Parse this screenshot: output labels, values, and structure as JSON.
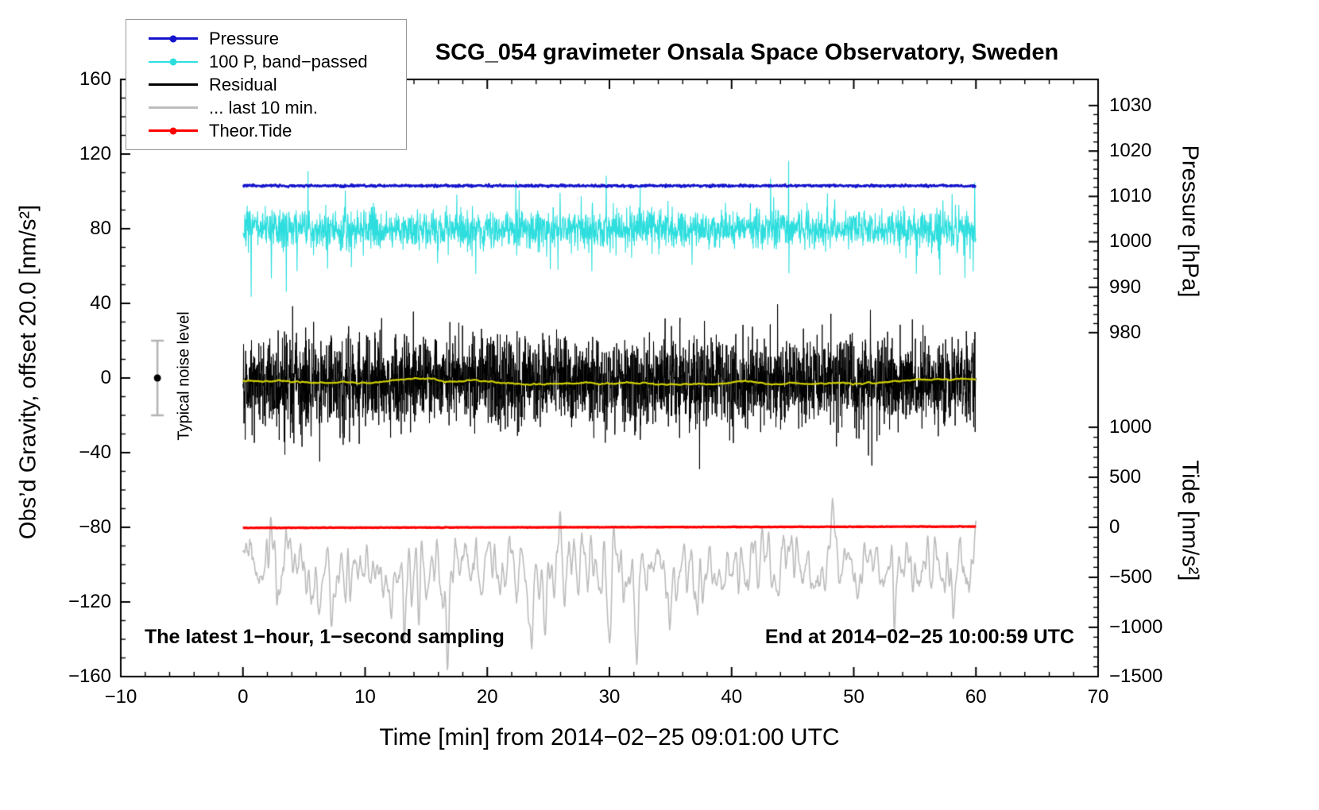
{
  "chart_data": {
    "type": "line",
    "title": "SCG_054 gravimeter Onsala Space Observatory, Sweden",
    "xlabel": "Time [min] from 2014−02−25 09:01:00 UTC",
    "ylabel_left": "Obs’d Gravity, offset 20.0 [nm/s²]",
    "ylabel_right_top": "Pressure [hPa]",
    "ylabel_right_bottom": "Tide [nm/s²]",
    "annotation_left": "The latest 1−hour, 1−second sampling",
    "annotation_right": "End at 2014−02−25 10:00:59 UTC",
    "xlim": [
      -10,
      70
    ],
    "ylim_left": [
      -160,
      160
    ],
    "grid": false,
    "legend_position": "top-left",
    "x_ticks": {
      "values": [
        -10,
        0,
        10,
        20,
        30,
        40,
        50,
        60,
        70
      ],
      "labels": [
        "−10",
        "0",
        "10",
        "20",
        "30",
        "40",
        "50",
        "60",
        "70"
      ],
      "minor_step": 2
    },
    "y_ticks_left": {
      "values": [
        -160,
        -120,
        -80,
        -40,
        0,
        40,
        80,
        120,
        160
      ],
      "labels": [
        "−160",
        "−120",
        "−80",
        "−40",
        "0",
        "40",
        "80",
        "120",
        "160"
      ],
      "minor_step": 10
    },
    "y_ticks_pressure": {
      "unit": "hPa",
      "labels": [
        "1030",
        "1020",
        "1010",
        "1000",
        "990",
        "980"
      ],
      "positions_left_units": [
        146.0,
        121.6,
        97.3,
        73.0,
        48.6,
        24.3
      ]
    },
    "y_ticks_tide": {
      "unit": "nm/s²",
      "labels": [
        "1000",
        "500",
        "0",
        "−500",
        "−1000",
        "−1500"
      ],
      "positions_left_units": [
        -26.4,
        -53.2,
        -80.0,
        -106.8,
        -133.6,
        -160.0
      ]
    },
    "noise_bar": {
      "label": "Typical noise level",
      "x": -7,
      "center": 0,
      "half_height": 20,
      "bar_color": "#b3b3b3",
      "dot_color": "#000000"
    },
    "legend": {
      "items": [
        {
          "label": "Pressure",
          "color": "#1414cc",
          "marker": true,
          "thickness": 3
        },
        {
          "label": "100 P, band−passed",
          "color": "#2edede",
          "marker": true,
          "thickness": 2
        },
        {
          "label": "Residual",
          "color": "#000000",
          "marker": false,
          "thickness": 2.5
        },
        {
          "label": "... last 10 min.",
          "color": "#bdbdbd",
          "marker": false,
          "thickness": 2.5
        },
        {
          "label": "Theor.Tide",
          "color": "#ff0000",
          "marker": true,
          "thickness": 2.5
        }
      ]
    },
    "series": [
      {
        "name": "100 P, band−passed",
        "color": "#2edede",
        "width": 1.1,
        "kind": "noise",
        "baseline": 80,
        "noise": 9,
        "spike_prob": 0.03,
        "spike_amp": 28,
        "samples": 2400,
        "x_range": [
          0,
          60
        ],
        "seed": 7
      },
      {
        "name": "Pressure",
        "color": "#1414cc",
        "width": 2.5,
        "kind": "noise",
        "baseline": 103,
        "noise": 0.55,
        "spike_prob": 0,
        "spike_amp": 0,
        "samples": 1500,
        "x_range": [
          0,
          60
        ],
        "seed": 3
      },
      {
        "name": "Residual",
        "color": "#000000",
        "width": 1,
        "kind": "noise",
        "baseline": -1.5,
        "noise": 20,
        "spike_prob": 0.03,
        "spike_amp": 28,
        "samples": 3600,
        "x_range": [
          0,
          60
        ],
        "seed": 12
      },
      {
        "name": "Residual smoothed",
        "color": "#cfcf00",
        "width": 2.2,
        "kind": "walk",
        "baseline": -1.5,
        "step": 0.5,
        "clamp": 2.2,
        "samples": 900,
        "x_range": [
          0,
          60
        ],
        "seed": 21
      },
      {
        "name": "... last 10 min.",
        "color": "#bdbdbd",
        "width": 1.6,
        "kind": "smooth",
        "baseline": -104,
        "noise": 16,
        "spike_prob": 0.012,
        "spike_amp": 36,
        "samples": 1600,
        "x_range": [
          0,
          60
        ],
        "seed": 33
      },
      {
        "name": "Theor.Tide",
        "color": "#ff0000",
        "width": 3.2,
        "kind": "noise",
        "baseline": -80.3,
        "noise": 0.12,
        "slope": 0.012,
        "spike_prob": 0,
        "spike_amp": 0,
        "samples": 800,
        "x_range": [
          0,
          60
        ],
        "seed": 41
      }
    ]
  }
}
